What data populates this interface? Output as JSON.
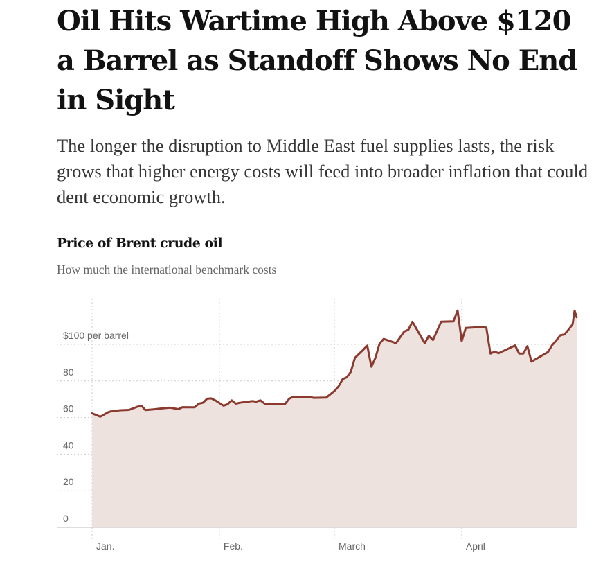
{
  "article": {
    "headline": "Oil Hits Wartime High Above $120 a Barrel as Standoff Shows No End in Sight",
    "summary": "The longer the disruption to Middle East fuel supplies lasts, the risk grows that higher energy costs will feed into broader inflation that could dent economic growth."
  },
  "colors": {
    "line": "#8b3a2f",
    "area": "#eee2df",
    "grid": "#cccccc"
  },
  "chart_data": {
    "type": "area",
    "title": "Price of Brent crude oil",
    "subtitle": "How much the international benchmark costs",
    "ylabel": "",
    "xlabel": "",
    "unit_label": "$100 per barrel",
    "ylim": [
      0,
      125
    ],
    "yticks": [
      0,
      20,
      40,
      60,
      80,
      100
    ],
    "ytick_labels": [
      "0",
      "20",
      "40",
      "60",
      "80",
      "$100 per barrel"
    ],
    "xlim": [
      "2026-01-01",
      "2026-04-29"
    ],
    "xticks": [
      {
        "date": "2026-01-01",
        "label": "Jan."
      },
      {
        "date": "2026-02-01",
        "label": "Feb."
      },
      {
        "date": "2026-03-01",
        "label": "March"
      },
      {
        "date": "2026-04-01",
        "label": "April"
      }
    ],
    "grid": true,
    "series": [
      {
        "name": "",
        "points": [
          {
            "x": "2026-01-01",
            "y": 62.3
          },
          {
            "x": "2026-01-03",
            "y": 60.5
          },
          {
            "x": "2026-01-05",
            "y": 63.0
          },
          {
            "x": "2026-01-06",
            "y": 63.6
          },
          {
            "x": "2026-01-08",
            "y": 64.0
          },
          {
            "x": "2026-01-10",
            "y": 64.2
          },
          {
            "x": "2026-01-12",
            "y": 65.9
          },
          {
            "x": "2026-01-13",
            "y": 66.5
          },
          {
            "x": "2026-01-14",
            "y": 64.1
          },
          {
            "x": "2026-01-16",
            "y": 64.5
          },
          {
            "x": "2026-01-18",
            "y": 65.0
          },
          {
            "x": "2026-01-20",
            "y": 65.4
          },
          {
            "x": "2026-01-22",
            "y": 64.6
          },
          {
            "x": "2026-01-23",
            "y": 65.7
          },
          {
            "x": "2026-01-26",
            "y": 65.6
          },
          {
            "x": "2026-01-27",
            "y": 67.6
          },
          {
            "x": "2026-01-28",
            "y": 68.1
          },
          {
            "x": "2026-01-29",
            "y": 70.3
          },
          {
            "x": "2026-01-30",
            "y": 70.5
          },
          {
            "x": "2026-01-31",
            "y": 69.4
          },
          {
            "x": "2026-02-02",
            "y": 66.5
          },
          {
            "x": "2026-02-03",
            "y": 67.3
          },
          {
            "x": "2026-02-04",
            "y": 69.4
          },
          {
            "x": "2026-02-05",
            "y": 67.6
          },
          {
            "x": "2026-02-06",
            "y": 68.1
          },
          {
            "x": "2026-02-08",
            "y": 68.7
          },
          {
            "x": "2026-02-09",
            "y": 69.0
          },
          {
            "x": "2026-02-10",
            "y": 68.7
          },
          {
            "x": "2026-02-11",
            "y": 69.4
          },
          {
            "x": "2026-02-12",
            "y": 67.6
          },
          {
            "x": "2026-02-15",
            "y": 67.6
          },
          {
            "x": "2026-02-17",
            "y": 67.5
          },
          {
            "x": "2026-02-18",
            "y": 70.3
          },
          {
            "x": "2026-02-19",
            "y": 71.4
          },
          {
            "x": "2026-02-22",
            "y": 71.4
          },
          {
            "x": "2026-02-23",
            "y": 71.2
          },
          {
            "x": "2026-02-24",
            "y": 70.8
          },
          {
            "x": "2026-02-27",
            "y": 70.9
          },
          {
            "x": "2026-03-01",
            "y": 74.5
          },
          {
            "x": "2026-03-02",
            "y": 77.0
          },
          {
            "x": "2026-03-03",
            "y": 81.0
          },
          {
            "x": "2026-03-04",
            "y": 82.0
          },
          {
            "x": "2026-03-05",
            "y": 85.0
          },
          {
            "x": "2026-03-06",
            "y": 92.7
          },
          {
            "x": "2026-03-08",
            "y": 97.0
          },
          {
            "x": "2026-03-09",
            "y": 99.3
          },
          {
            "x": "2026-03-10",
            "y": 87.8
          },
          {
            "x": "2026-03-11",
            "y": 92.7
          },
          {
            "x": "2026-03-12",
            "y": 100.5
          },
          {
            "x": "2026-03-13",
            "y": 103.0
          },
          {
            "x": "2026-03-16",
            "y": 100.7
          },
          {
            "x": "2026-03-18",
            "y": 107.0
          },
          {
            "x": "2026-03-19",
            "y": 108.0
          },
          {
            "x": "2026-03-20",
            "y": 112.4
          },
          {
            "x": "2026-03-23",
            "y": 100.7
          },
          {
            "x": "2026-03-24",
            "y": 104.7
          },
          {
            "x": "2026-03-25",
            "y": 102.4
          },
          {
            "x": "2026-03-27",
            "y": 112.4
          },
          {
            "x": "2026-03-30",
            "y": 112.6
          },
          {
            "x": "2026-03-31",
            "y": 118.5
          },
          {
            "x": "2026-04-01",
            "y": 101.8
          },
          {
            "x": "2026-04-02",
            "y": 109.0
          },
          {
            "x": "2026-04-06",
            "y": 109.5
          },
          {
            "x": "2026-04-07",
            "y": 109.2
          },
          {
            "x": "2026-04-08",
            "y": 95.0
          },
          {
            "x": "2026-04-09",
            "y": 96.0
          },
          {
            "x": "2026-04-10",
            "y": 95.2
          },
          {
            "x": "2026-04-14",
            "y": 99.4
          },
          {
            "x": "2026-04-15",
            "y": 95.0
          },
          {
            "x": "2026-04-16",
            "y": 95.0
          },
          {
            "x": "2026-04-17",
            "y": 99.0
          },
          {
            "x": "2026-04-18",
            "y": 90.6
          },
          {
            "x": "2026-04-22",
            "y": 95.8
          },
          {
            "x": "2026-04-23",
            "y": 99.5
          },
          {
            "x": "2026-04-24",
            "y": 102.0
          },
          {
            "x": "2026-04-25",
            "y": 105.0
          },
          {
            "x": "2026-04-26",
            "y": 105.4
          },
          {
            "x": "2026-04-27",
            "y": 108.0
          },
          {
            "x": "2026-04-28",
            "y": 111.0
          },
          {
            "x": "2026-04-28T12:00",
            "y": 118.5
          },
          {
            "x": "2026-04-29",
            "y": 114.9
          }
        ]
      }
    ]
  }
}
